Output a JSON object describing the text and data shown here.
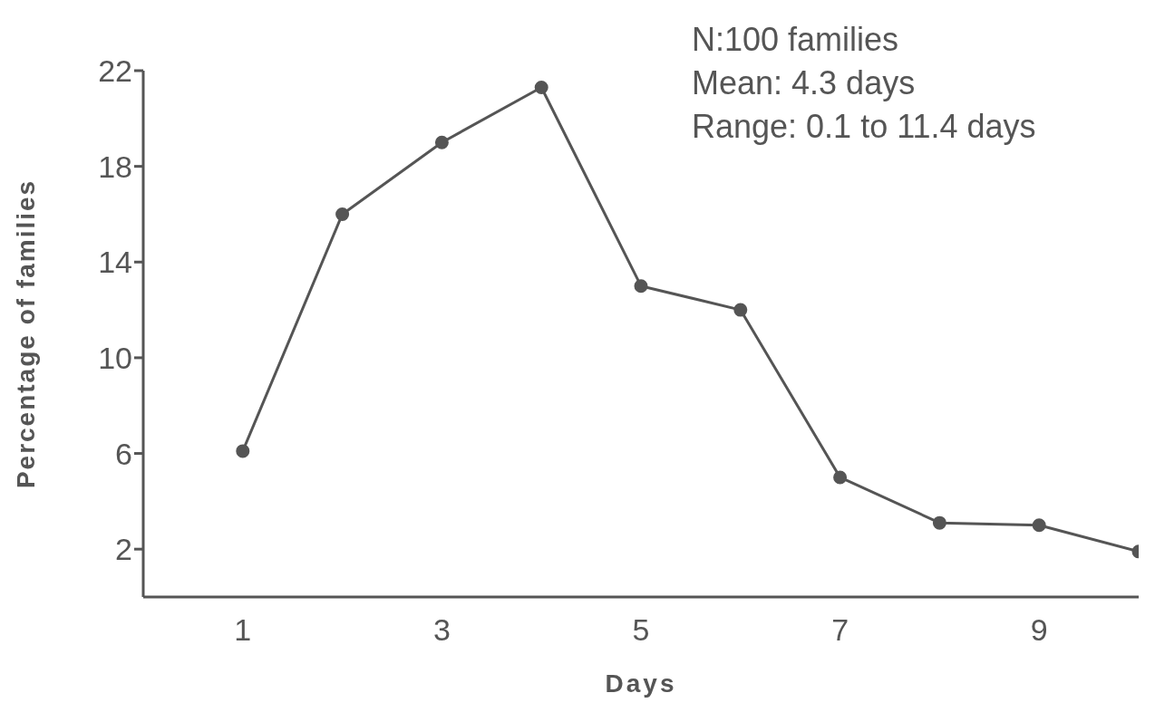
{
  "chart_data": {
    "type": "line",
    "xlabel": "Days",
    "ylabel": "Percentage of families",
    "x": [
      1,
      2,
      3,
      4,
      5,
      6,
      7,
      8,
      9,
      10
    ],
    "series": [
      {
        "color": "#555555",
        "values": [
          6.1,
          16,
          19,
          21.3,
          13,
          12,
          5,
          3.1,
          3,
          1.9
        ]
      }
    ],
    "xlim": [
      0,
      10
    ],
    "xticks": [
      1,
      3,
      5,
      7,
      9
    ],
    "ylim": [
      0,
      22
    ],
    "yticks": [
      2,
      6,
      10,
      14,
      18,
      22
    ],
    "grid": false,
    "legend": false,
    "marker": "circle",
    "line_style": "solid",
    "annotations": [
      "N:100 families",
      "Mean: 4.3 days",
      "Range: 0.1 to 11.4 days"
    ]
  }
}
